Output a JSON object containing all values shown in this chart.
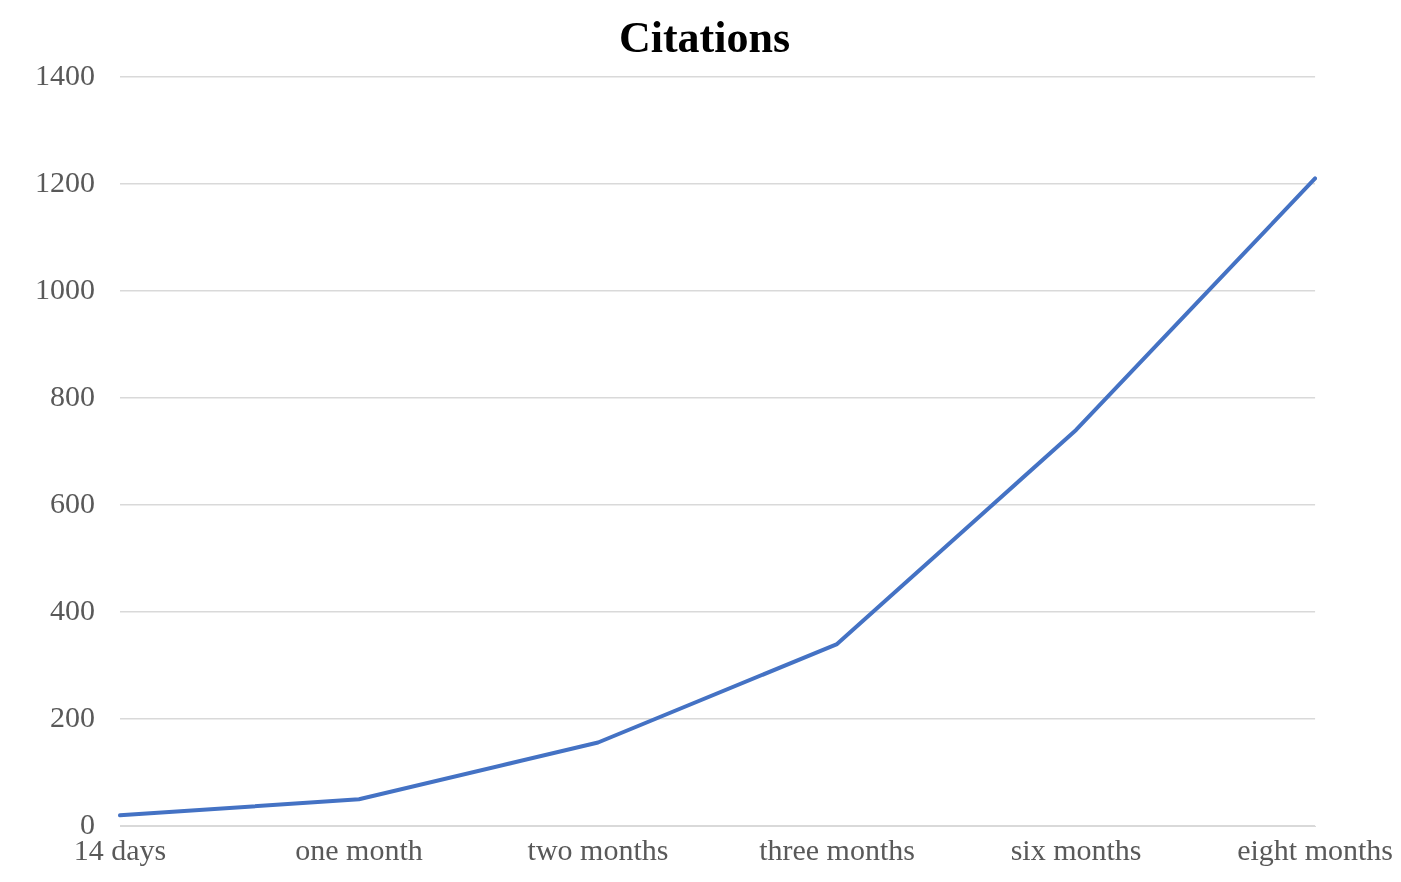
{
  "chart_data": {
    "type": "line",
    "title": "Citations",
    "categories": [
      "14 days",
      "one month",
      "two months",
      "three months",
      "six months",
      "eight months"
    ],
    "series": [
      {
        "color": "#4472c4",
        "values": [
          20,
          50,
          156,
          340,
          740,
          1210
        ]
      }
    ],
    "ylim": [
      0,
      1400
    ],
    "yticks": [
      0,
      200,
      400,
      600,
      800,
      1000,
      1200,
      1400
    ],
    "grid": "y",
    "legend": false,
    "marker": "none",
    "line_style": "solid"
  }
}
